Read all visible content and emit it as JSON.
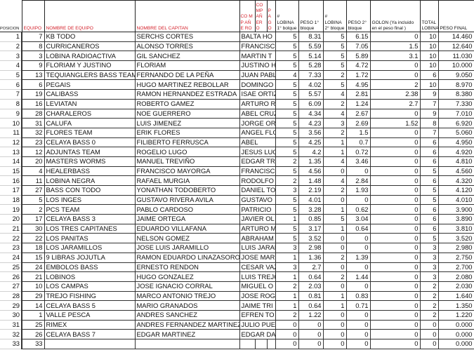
{
  "headers": {
    "posicion": "POSICION",
    "equipo": "EQUIPO",
    "nombre_equipo": "NOMBRE DE EQUIPO",
    "nombre_capitan": "NOMBRE DEL CAPITAN",
    "companero1": "CO MP AÑE RO",
    "companero2": "CO MP AÑ ERO",
    "pago": "P A G O",
    "lobina1": "# LOBINA 1° bolque",
    "peso1": "PESO 1° bloque",
    "lobina2": "# LOBINA 2° bloque",
    "peso2": "PESO 2° bloque",
    "golon": "GOLON (Ya incluido en el peso final )",
    "total": "TOTAL LOBINA",
    "peso_final": "PESO FINAL"
  },
  "colors": {
    "header_red": "#d4202a"
  },
  "rows": [
    [
      "1",
      "7",
      "KB TODO",
      "SERCHS CORTES",
      "BALTA HO",
      "5",
      "8.31",
      "5",
      "6.15",
      "0",
      "10",
      "14.460"
    ],
    [
      "2",
      "8",
      "CURRICANEROS",
      "ALONSO TORRES",
      "FRANCISCO",
      "5",
      "5.59",
      "5",
      "7.05",
      "1.5",
      "10",
      "12.640"
    ],
    [
      "3",
      "3",
      "LOBINA RADIOACTIVA",
      "GIL SANCHEZ",
      "MARTIN T",
      "5",
      "5.14",
      "5",
      "5.89",
      "3.1",
      "10",
      "11.030"
    ],
    [
      "4",
      "9",
      "FLORIAM Y JUSTINO",
      "FLORIAM",
      "JUSTINO H",
      "5",
      "5.28",
      "5",
      "4.72",
      "0",
      "10",
      "10.000"
    ],
    [
      "5",
      "13",
      "TEQUIANGLERS BASS TEAM",
      "FERNANDO DE LA PEÑA",
      "JUAN PABL",
      "4",
      "7.33",
      "2",
      "1.72",
      "0",
      "6",
      "9.050"
    ],
    [
      "6",
      "6",
      "PEGAIS",
      "HUGO MARTINEZ REBOLLAR",
      "DOMINGO",
      "5",
      "4.02",
      "5",
      "4.95",
      "2",
      "10",
      "8.970"
    ],
    [
      "7",
      "19",
      "CALIBASS",
      "RAMON HERNANDEZ ESTRADA",
      "ISAE ORTIZ",
      "5",
      "5.57",
      "4",
      "2.81",
      "2.38",
      "9",
      "8.380"
    ],
    [
      "8",
      "16",
      "LEVIATAN",
      "ROBERTO GAMEZ",
      "ARTURO R",
      "5",
      "6.09",
      "2",
      "1.24",
      "2.7",
      "7",
      "7.330"
    ],
    [
      "9",
      "28",
      "CHARALEROS",
      "NOE GUERRERO",
      "ABEL CRUZ",
      "5",
      "4.34",
      "4",
      "2.67",
      "0",
      "9",
      "7.010"
    ],
    [
      "10",
      "31",
      "CALUFA",
      "LUIS JIMENEZ",
      "JORGE ORT",
      "5",
      "4.23",
      "3",
      "2.69",
      "1.52",
      "8",
      "6.920"
    ],
    [
      "11",
      "32",
      "FLORES TEAM",
      "ERIK FLORES",
      "ANGEL FLO",
      "5",
      "3.56",
      "2",
      "1.5",
      "0",
      "7",
      "5.060"
    ],
    [
      "12",
      "23",
      "CELAYA BASS 0",
      "FILIBERTO FERRUSCA",
      "ABEL",
      "5",
      "4.25",
      "1",
      "0.7",
      "0",
      "6",
      "4.950"
    ],
    [
      "13",
      "12",
      "ADJUNTAS TEAM",
      "ROGELIO LUGO",
      "JESUS LUG",
      "5",
      "4.2",
      "1",
      "0.72",
      "0",
      "6",
      "4.920"
    ],
    [
      "14",
      "20",
      "MASTERS WORMS",
      "MANUEL TREVIÑO",
      "EDGAR TR",
      "2",
      "1.35",
      "4",
      "3.46",
      "0",
      "6",
      "4.810"
    ],
    [
      "15",
      "4",
      "HEALERBASS",
      "FRANCISCO MAYORGA",
      "FRANCISCO",
      "5",
      "4.56",
      "0",
      "0",
      "0",
      "5",
      "4.560"
    ],
    [
      "16",
      "11",
      "LOBINA NEGRA",
      "RAFAEL MURGIA",
      "RODOLFO",
      "2",
      "1.48",
      "4",
      "2.84",
      "0",
      "6",
      "4.320"
    ],
    [
      "17",
      "27",
      "BASS CON TODO",
      "YONATHAN TODOBERTO",
      "DANIEL TO",
      "3",
      "2.19",
      "2",
      "1.93",
      "0",
      "5",
      "4.120"
    ],
    [
      "18",
      "5",
      "LOS INGES",
      "GUSTAVO RIVERA AVILA",
      "GUSTAVO",
      "5",
      "4.01",
      "0",
      "0",
      "0",
      "5",
      "4.010"
    ],
    [
      "19",
      "2",
      "PCS TEAM",
      "PABLO CARDOSO",
      "PATRICIO",
      "5",
      "3.28",
      "1",
      "0.62",
      "0",
      "6",
      "3.900"
    ],
    [
      "20",
      "17",
      "CELAYA BASS 3",
      "JAIME ORTEGA",
      "JAVIER OL",
      "1",
      "0.85",
      "5",
      "3.04",
      "0",
      "6",
      "3.890"
    ],
    [
      "21",
      "30",
      "LOS TRES CAPITANES",
      "EDUARDO VILLAFANA",
      "ARTURO M",
      "5",
      "3.17",
      "1",
      "0.64",
      "0",
      "6",
      "3.810"
    ],
    [
      "22",
      "22",
      "LOS PANITAS",
      "NELSON GOMEZ",
      "ABRAHAM",
      "5",
      "3.52",
      "0",
      "0",
      "0",
      "5",
      "3.520"
    ],
    [
      "23",
      "18",
      "LOS JARAMILLOS",
      "JOSE LUIS JARAMILLO",
      "LUIS JARAM",
      "3",
      "2.98",
      "0",
      "0",
      "0",
      "3",
      "2.980"
    ],
    [
      "24",
      "15",
      "9 LIBRAS JOJUTLA",
      "RAMON EDUARDO LINAZASORO",
      "JOSE MAR",
      "1",
      "1.36",
      "2",
      "1.39",
      "0",
      "3",
      "2.750"
    ],
    [
      "25",
      "24",
      "EMBOLOS BASS",
      "ERNESTO RENDON",
      "CESAR VAZ",
      "3",
      "2.7",
      "0",
      "0",
      "0",
      "3",
      "2.700"
    ],
    [
      "26",
      "21",
      "LOBINOS",
      "HUGO GONZALEZ",
      "LUIS TREJO",
      "1",
      "0.64",
      "2",
      "1.44",
      "0",
      "3",
      "2.080"
    ],
    [
      "27",
      "10",
      "LOS CAMPAS",
      "JOSE IGNACIO CORRAL",
      "MIGUEL O",
      "2",
      "2.03",
      "0",
      "0",
      "0",
      "2",
      "2.030"
    ],
    [
      "28",
      "29",
      "TREJO FISHING",
      "MARCO ANTONIO TREJO",
      "JOSE ROGE",
      "1",
      "0.81",
      "1",
      "0.83",
      "0",
      "2",
      "1.640"
    ],
    [
      "29",
      "14",
      "CELAYA BASS 5",
      "MARIO GRANADOS",
      "JAIME TRI",
      "1",
      "0.64",
      "1",
      "0.71",
      "0",
      "2",
      "1.350"
    ],
    [
      "30",
      "1",
      "VALLE PESCA",
      "ANDRES SANCHEZ",
      "EFREN TO",
      "2",
      "1.22",
      "0",
      "0",
      "0",
      "2",
      "1.220"
    ],
    [
      "31",
      "25",
      "RIMEX",
      "ANDRES FERNANDEZ MARTINEZ",
      "JULIO PUE",
      "0",
      "0",
      "0",
      "0",
      "0",
      "0",
      "0.000"
    ],
    [
      "32",
      "26",
      "CELAYA BASS 7",
      "EDGAR MARTINEZ",
      "EDGAR DA",
      "0",
      "0",
      "0",
      "0",
      "0",
      "0",
      "0.000"
    ],
    [
      "33",
      "33",
      "",
      "",
      "",
      "0",
      "0",
      "0",
      "0",
      "0",
      "0",
      "0.000"
    ]
  ]
}
